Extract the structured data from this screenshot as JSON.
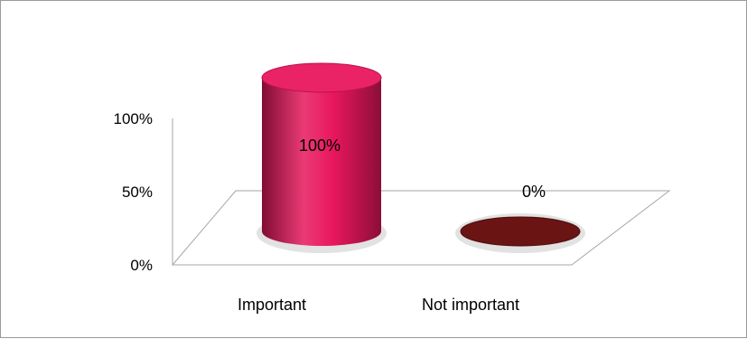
{
  "chart_data": {
    "type": "bar",
    "style": "3d-cylinder",
    "categories": [
      "Important",
      "Not important"
    ],
    "values": [
      100,
      0
    ],
    "value_labels": [
      "100%",
      "0%"
    ],
    "ylim": [
      0,
      100
    ],
    "yticks": [
      0,
      50,
      100
    ],
    "ytick_labels": [
      "0%",
      "50%",
      "100%"
    ],
    "title": "",
    "xlabel": "",
    "ylabel": "",
    "legend": "none",
    "grid": false,
    "colors": [
      "#e8175d",
      "#6b1414"
    ],
    "floor_color": "#ffffff",
    "axis_color": "#a6a6a6"
  }
}
